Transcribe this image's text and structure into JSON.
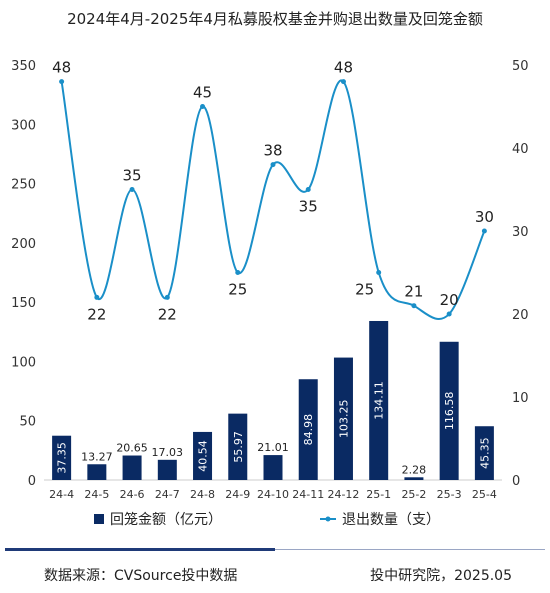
{
  "title": "2024年4月-2025年4月私募股权基金并购退出数量及回笼金额",
  "footer": {
    "source": "数据来源：CVSource投中数据",
    "credit": "投中研究院，2025.05"
  },
  "chart_data": {
    "type": "bar+line",
    "categories": [
      "24-4",
      "24-5",
      "24-6",
      "24-7",
      "24-8",
      "24-9",
      "24-10",
      "24-11",
      "24-12",
      "25-1",
      "25-2",
      "25-3",
      "25-4"
    ],
    "series": [
      {
        "name": "回笼金额（亿元）",
        "type": "bar",
        "axis": "left",
        "color": "#0a2a63",
        "values": [
          37.35,
          13.27,
          20.65,
          17.03,
          40.54,
          55.97,
          21.01,
          84.98,
          103.25,
          134.11,
          2.28,
          116.58,
          45.35
        ],
        "labels": [
          "37.35",
          "13.27",
          "20.65",
          "17.03",
          "40.54",
          "55.97",
          "21.01",
          "84.98",
          "103.25",
          "134.11",
          "2.28",
          "116.58",
          "45.35"
        ]
      },
      {
        "name": "退出数量（支）",
        "type": "line",
        "axis": "right",
        "color": "#1a8fc8",
        "smooth": true,
        "values": [
          48,
          22,
          35,
          22,
          45,
          25,
          38,
          35,
          48,
          25,
          21,
          20,
          30
        ],
        "labels": [
          "48",
          "22",
          "35",
          "22",
          "45",
          "25",
          "38",
          "35",
          "48",
          "25",
          "21",
          "20",
          "30"
        ]
      }
    ],
    "y_left": {
      "min": 0,
      "max": 350,
      "ticks": [
        "0",
        "50",
        "100",
        "150",
        "200",
        "250",
        "300",
        "350"
      ]
    },
    "y_right": {
      "min": 0,
      "max": 50,
      "ticks": [
        "0",
        "10",
        "20",
        "30",
        "40",
        "50"
      ]
    },
    "legend": "bottom",
    "grid": false
  }
}
